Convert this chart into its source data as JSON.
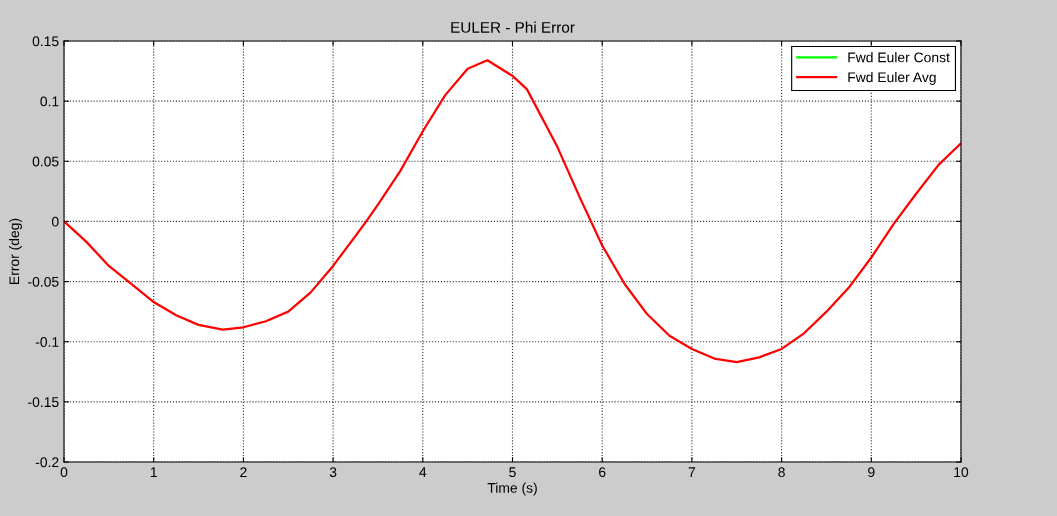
{
  "chart_data": {
    "type": "line",
    "title": "EULER - Phi Error",
    "xlabel": "Time (s)",
    "ylabel": "Error (deg)",
    "x": [
      0,
      0.25,
      0.5,
      0.75,
      1,
      1.25,
      1.5,
      1.77,
      2,
      2.25,
      2.5,
      2.75,
      3,
      3.25,
      3.37,
      3.5,
      3.75,
      4,
      4.25,
      4.5,
      4.72,
      5,
      5.16,
      5.5,
      5.75,
      6,
      6.25,
      6.5,
      6.75,
      7,
      7.25,
      7.5,
      7.75,
      8,
      8.25,
      8.5,
      8.75,
      9,
      9.25,
      9.5,
      9.75,
      10
    ],
    "series": [
      {
        "name": "Fwd Euler Const",
        "color": "#00ff00",
        "values": [
          null,
          null,
          null,
          null,
          null,
          null,
          null,
          null,
          null,
          null,
          null,
          null,
          null,
          null,
          null,
          null,
          null,
          null,
          null,
          null,
          null,
          null,
          null,
          null,
          null,
          null,
          null,
          null,
          null,
          null,
          null,
          null,
          null,
          null,
          null,
          null,
          null,
          null,
          null,
          null,
          null,
          null
        ]
      },
      {
        "name": "Fwd Euler Avg",
        "color": "#ff0000",
        "values": [
          0,
          -0.017,
          -0.037,
          -0.052,
          -0.067,
          -0.078,
          -0.086,
          -0.09,
          -0.088,
          -0.083,
          -0.075,
          -0.059,
          -0.037,
          -0.012,
          0,
          0.014,
          0.042,
          0.075,
          0.105,
          0.127,
          0.134,
          0.121,
          0.11,
          0.062,
          0.02,
          -0.02,
          -0.052,
          -0.077,
          -0.095,
          -0.106,
          -0.114,
          -0.117,
          -0.113,
          -0.106,
          -0.093,
          -0.075,
          -0.055,
          -0.03,
          -0.002,
          0.023,
          0.047,
          0.065
        ]
      }
    ],
    "xlim": [
      0,
      10
    ],
    "xticks": [
      0,
      1,
      2,
      3,
      4,
      5,
      6,
      7,
      8,
      9,
      10
    ],
    "ylim": [
      -0.2,
      0.15
    ],
    "yticks": [
      -0.2,
      -0.15,
      -0.1,
      -0.05,
      0,
      0.05,
      0.1,
      0.15
    ],
    "grid": true,
    "legend": "top right",
    "line_style": "solid",
    "marker": "none"
  }
}
